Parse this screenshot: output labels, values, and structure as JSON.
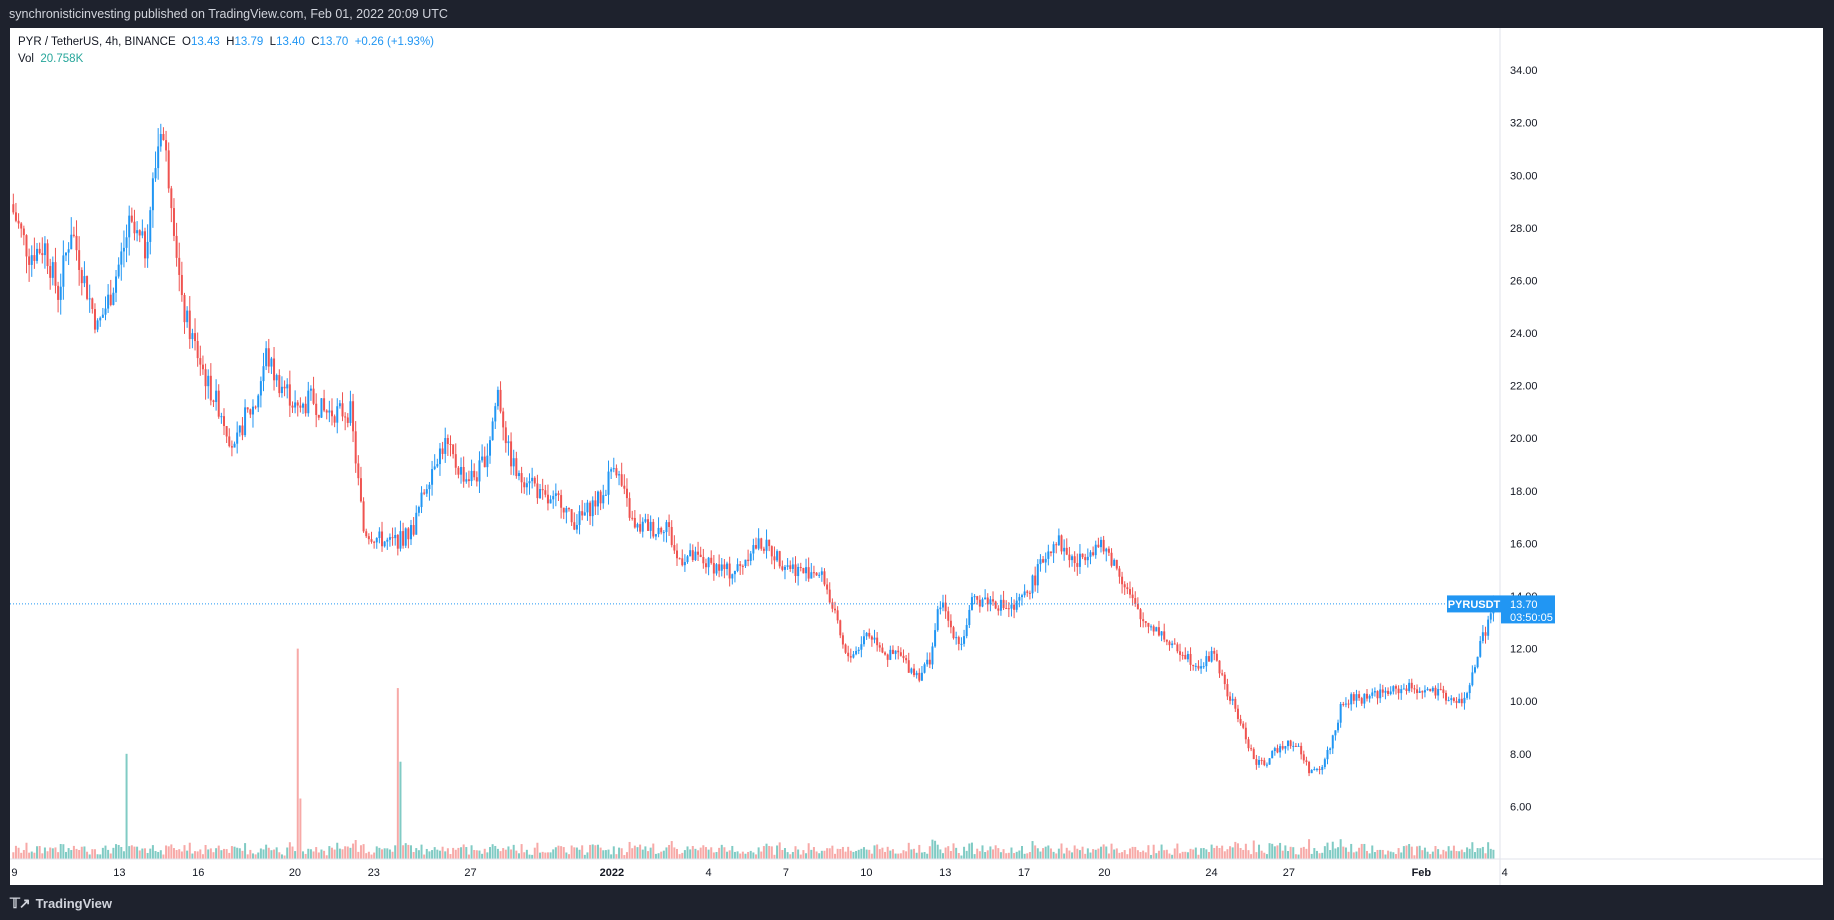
{
  "header": {
    "publish_text": "synchronisticinvesting published on TradingView.com, Feb 01, 2022 20:09 UTC"
  },
  "legend": {
    "symbol": "PYR / TetherUS, 4h, BINANCE",
    "open_label": "O",
    "open": "13.43",
    "high_label": "H",
    "high": "13.79",
    "low_label": "L",
    "low": "13.40",
    "close_label": "C",
    "close": "13.70",
    "change": "+0.26 (+1.93%)",
    "vol_label": "Vol",
    "vol": "20.758K"
  },
  "price_tag": {
    "ticker": "PYRUSDT",
    "price": "13.70",
    "countdown": "03:50:05"
  },
  "footer": {
    "brand": "TradingView"
  },
  "colors": {
    "up": "#2196f3",
    "down": "#ef5350",
    "vol_up": "#80cbc4",
    "vol_down": "#f7a9a7",
    "price_line": "#2196f3",
    "background": "#ffffff",
    "frame": "#1e222d"
  },
  "chart_data": {
    "type": "candlestick",
    "y_ticks": [
      "34.00",
      "32.00",
      "30.00",
      "28.00",
      "26.00",
      "24.00",
      "22.00",
      "20.00",
      "18.00",
      "16.00",
      "14.00",
      "12.00",
      "10.00",
      "8.00",
      "6.00"
    ],
    "x_ticks": [
      "9",
      "13",
      "16",
      "20",
      "23",
      "27",
      "2022",
      "4",
      "7",
      "10",
      "13",
      "17",
      "20",
      "24",
      "27",
      "Feb",
      "4"
    ],
    "ylim": [
      4,
      35.6
    ],
    "last_price": 13.7,
    "close_path": [
      [
        0,
        28.6
      ],
      [
        6,
        27.0
      ],
      [
        12,
        27.3
      ],
      [
        17,
        25.5
      ],
      [
        22,
        28.0
      ],
      [
        27,
        26.0
      ],
      [
        32,
        24.2
      ],
      [
        37,
        25.5
      ],
      [
        44,
        28.0
      ],
      [
        50,
        27.2
      ],
      [
        56,
        32.0
      ],
      [
        60,
        29.3
      ],
      [
        64,
        25.0
      ],
      [
        69,
        23.5
      ],
      [
        74,
        22.0
      ],
      [
        79,
        21.0
      ],
      [
        84,
        19.5
      ],
      [
        88,
        20.8
      ],
      [
        92,
        21.3
      ],
      [
        96,
        23.2
      ],
      [
        100,
        22.2
      ],
      [
        104,
        21.8
      ],
      [
        108,
        21.0
      ],
      [
        113,
        21.5
      ],
      [
        118,
        21.0
      ],
      [
        124,
        21.0
      ],
      [
        128,
        21.0
      ],
      [
        133,
        16.5
      ],
      [
        138,
        16.2
      ],
      [
        143,
        16.0
      ],
      [
        148,
        16.2
      ],
      [
        152,
        16.6
      ],
      [
        156,
        18.0
      ],
      [
        160,
        19.2
      ],
      [
        164,
        19.8
      ],
      [
        168,
        19.0
      ],
      [
        172,
        18.5
      ],
      [
        176,
        18.6
      ],
      [
        180,
        19.5
      ],
      [
        184,
        21.8
      ],
      [
        188,
        19.5
      ],
      [
        192,
        18.4
      ],
      [
        196,
        18.6
      ],
      [
        200,
        17.8
      ],
      [
        204,
        17.5
      ],
      [
        208,
        17.7
      ],
      [
        212,
        16.8
      ],
      [
        216,
        17.0
      ],
      [
        220,
        17.5
      ],
      [
        224,
        17.8
      ],
      [
        228,
        19.2
      ],
      [
        232,
        17.8
      ],
      [
        236,
        16.5
      ],
      [
        240,
        16.7
      ],
      [
        244,
        16.5
      ],
      [
        248,
        16.8
      ],
      [
        252,
        15.4
      ],
      [
        256,
        15.5
      ],
      [
        260,
        15.4
      ],
      [
        264,
        15.2
      ],
      [
        268,
        15.1
      ],
      [
        272,
        14.9
      ],
      [
        276,
        15.1
      ],
      [
        280,
        15.8
      ],
      [
        284,
        16.0
      ],
      [
        288,
        15.7
      ],
      [
        292,
        15.3
      ],
      [
        296,
        15.1
      ],
      [
        300,
        14.9
      ],
      [
        304,
        15.0
      ],
      [
        308,
        14.6
      ],
      [
        312,
        13.2
      ],
      [
        316,
        11.7
      ],
      [
        320,
        11.9
      ],
      [
        324,
        12.6
      ],
      [
        328,
        12.3
      ],
      [
        332,
        11.7
      ],
      [
        336,
        11.8
      ],
      [
        340,
        11.3
      ],
      [
        344,
        11.0
      ],
      [
        348,
        11.6
      ],
      [
        352,
        13.8
      ],
      [
        356,
        12.8
      ],
      [
        360,
        12.2
      ],
      [
        364,
        13.7
      ],
      [
        368,
        13.9
      ],
      [
        372,
        13.8
      ],
      [
        376,
        13.6
      ],
      [
        380,
        13.5
      ],
      [
        384,
        14.0
      ],
      [
        388,
        14.7
      ],
      [
        392,
        15.6
      ],
      [
        396,
        16.2
      ],
      [
        400,
        15.6
      ],
      [
        404,
        15.2
      ],
      [
        408,
        15.8
      ],
      [
        412,
        15.9
      ],
      [
        416,
        15.6
      ],
      [
        420,
        14.9
      ],
      [
        424,
        14.0
      ],
      [
        428,
        13.1
      ],
      [
        432,
        12.9
      ],
      [
        436,
        12.6
      ],
      [
        440,
        12.0
      ],
      [
        444,
        11.9
      ],
      [
        448,
        11.5
      ],
      [
        452,
        11.4
      ],
      [
        456,
        11.9
      ],
      [
        460,
        10.5
      ],
      [
        464,
        9.7
      ],
      [
        468,
        8.6
      ],
      [
        472,
        7.6
      ],
      [
        476,
        7.7
      ],
      [
        480,
        8.2
      ],
      [
        484,
        8.5
      ],
      [
        488,
        8.2
      ],
      [
        492,
        7.4
      ],
      [
        496,
        7.3
      ],
      [
        500,
        8.3
      ],
      [
        504,
        9.7
      ],
      [
        508,
        10.1
      ],
      [
        512,
        10.1
      ],
      [
        516,
        10.3
      ],
      [
        520,
        10.3
      ],
      [
        524,
        10.4
      ],
      [
        528,
        10.5
      ],
      [
        532,
        10.5
      ],
      [
        536,
        10.4
      ],
      [
        540,
        10.3
      ],
      [
        544,
        10.2
      ],
      [
        548,
        9.9
      ],
      [
        552,
        10.2
      ],
      [
        556,
        11.8
      ],
      [
        560,
        13.0
      ],
      [
        562,
        13.7
      ]
    ],
    "volume_spikes": [
      [
        43,
        8.0
      ],
      [
        108,
        12.0
      ],
      [
        109,
        6.3
      ],
      [
        146,
        10.5
      ],
      [
        147,
        7.7
      ]
    ],
    "n_bars": 563
  }
}
